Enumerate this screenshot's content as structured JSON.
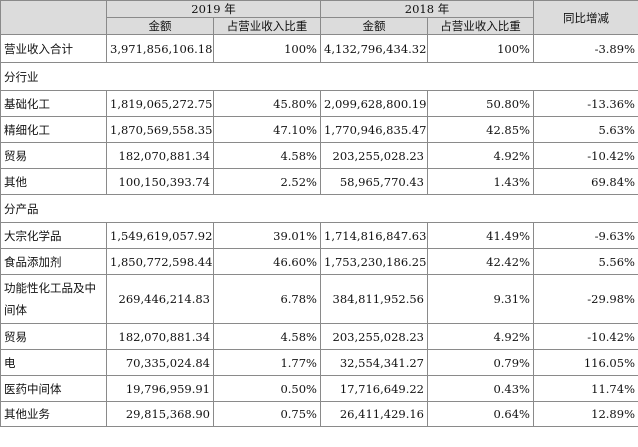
{
  "header": {
    "year_2019": "2019 年",
    "year_2018": "2018 年",
    "yoy": "同比增减",
    "amount": "金额",
    "ratio": "占营业收入比重"
  },
  "total": {
    "label": "营业收入合计",
    "amt2019": "3,971,856,106.18",
    "pct2019": "100%",
    "amt2018": "4,132,796,434.32",
    "pct2018": "100%",
    "yoy": "-3.89%"
  },
  "section_industry": "分行业",
  "industry_rows": [
    {
      "label": "基础化工",
      "amt2019": "1,819,065,272.75",
      "pct2019": "45.80%",
      "amt2018": "2,099,628,800.19",
      "pct2018": "50.80%",
      "yoy": "-13.36%"
    },
    {
      "label": "精细化工",
      "amt2019": "1,870,569,558.35",
      "pct2019": "47.10%",
      "amt2018": "1,770,946,835.47",
      "pct2018": "42.85%",
      "yoy": "5.63%"
    },
    {
      "label": "贸易",
      "amt2019": "182,070,881.34",
      "pct2019": "4.58%",
      "amt2018": "203,255,028.23",
      "pct2018": "4.92%",
      "yoy": "-10.42%"
    },
    {
      "label": "其他",
      "amt2019": "100,150,393.74",
      "pct2019": "2.52%",
      "amt2018": "58,965,770.43",
      "pct2018": "1.43%",
      "yoy": "69.84%"
    }
  ],
  "section_product": "分产品",
  "product_rows": [
    {
      "label": "大宗化学品",
      "amt2019": "1,549,619,057.92",
      "pct2019": "39.01%",
      "amt2018": "1,714,816,847.63",
      "pct2018": "41.49%",
      "yoy": "-9.63%"
    },
    {
      "label": "食品添加剂",
      "amt2019": "1,850,772,598.44",
      "pct2019": "46.60%",
      "amt2018": "1,753,230,186.25",
      "pct2018": "42.42%",
      "yoy": "5.56%"
    },
    {
      "label": "功能性化工品及中间体",
      "amt2019": "269,446,214.83",
      "pct2019": "6.78%",
      "amt2018": "384,811,952.56",
      "pct2018": "9.31%",
      "yoy": "-29.98%"
    },
    {
      "label": "贸易",
      "amt2019": "182,070,881.34",
      "pct2019": "4.58%",
      "amt2018": "203,255,028.23",
      "pct2018": "4.92%",
      "yoy": "-10.42%"
    },
    {
      "label": "电",
      "amt2019": "70,335,024.84",
      "pct2019": "1.77%",
      "amt2018": "32,554,341.27",
      "pct2018": "0.79%",
      "yoy": "116.05%"
    },
    {
      "label": "医药中间体",
      "amt2019": "19,796,959.91",
      "pct2019": "0.50%",
      "amt2018": "17,716,649.22",
      "pct2018": "0.43%",
      "yoy": "11.74%"
    },
    {
      "label": "其他业务",
      "amt2019": "29,815,368.90",
      "pct2019": "0.75%",
      "amt2018": "26,411,429.16",
      "pct2018": "0.64%",
      "yoy": "12.89%"
    }
  ]
}
